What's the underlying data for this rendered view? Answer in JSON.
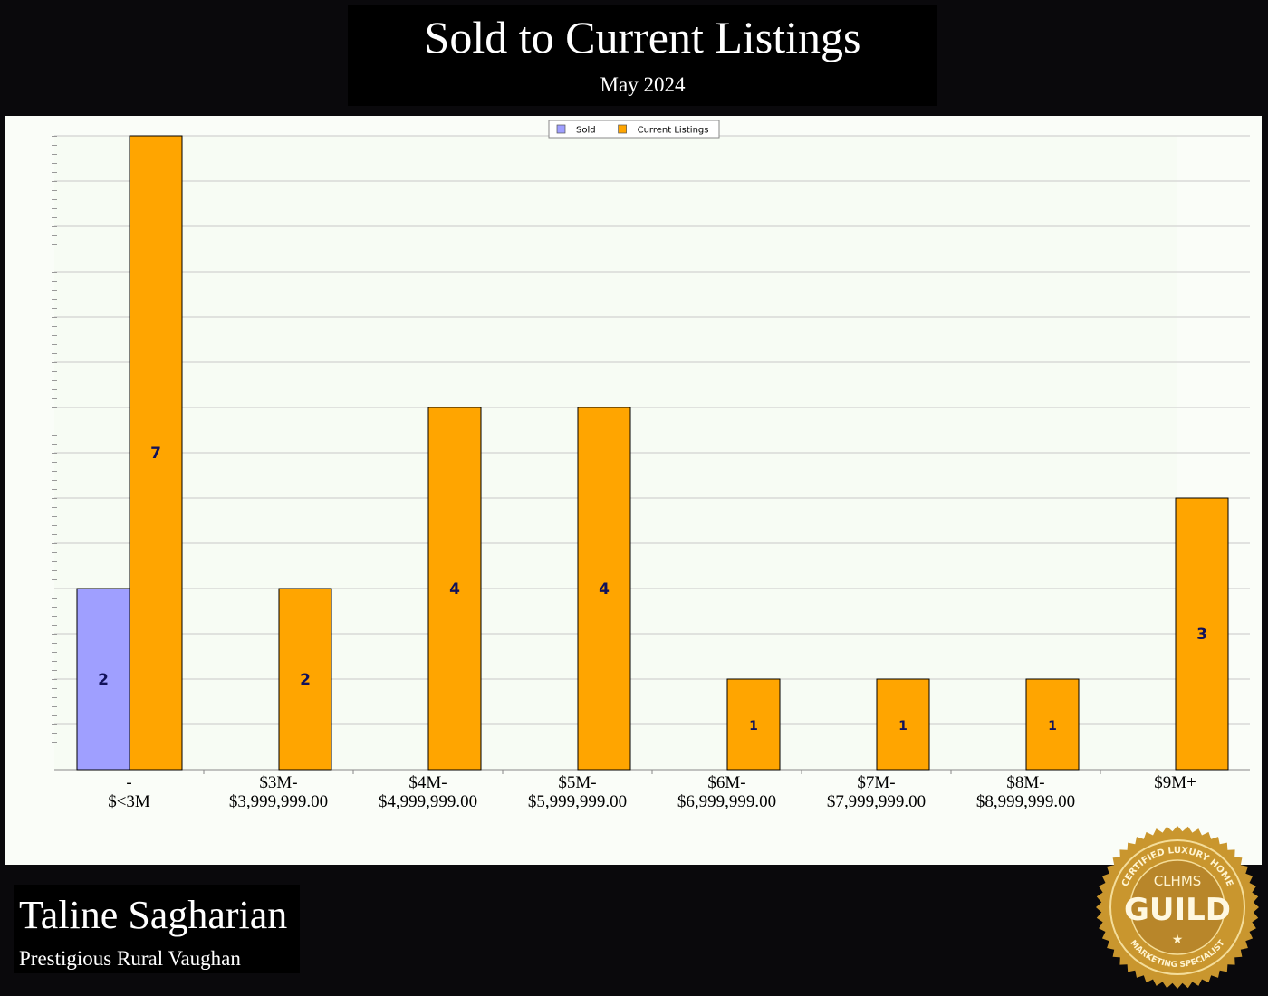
{
  "chart_data": {
    "type": "bar",
    "title": "Sold to Current Listings",
    "subtitle": "May 2024",
    "categories": [
      "-\n$<3M",
      "$3M-\n$3,999,999.00",
      "$4M-\n$4,999,999.00",
      "$5M-\n$5,999,999.00",
      "$6M-\n$6,999,999.00",
      "$7M-\n$7,999,999.00",
      "$8M-\n$8,999,999.00",
      "$9M+"
    ],
    "series": [
      {
        "name": "Sold",
        "color": "#9f9fff",
        "values": [
          2,
          null,
          null,
          null,
          null,
          null,
          null,
          null
        ]
      },
      {
        "name": "Current Listings",
        "color": "#ffa500",
        "values": [
          7,
          2,
          4,
          4,
          1,
          1,
          1,
          3
        ]
      }
    ],
    "ylim": [
      0,
      7
    ],
    "yticks": [
      0,
      0.5,
      1,
      1.5,
      2,
      2.5,
      3,
      3.5,
      4,
      4.5,
      5,
      5.5,
      6,
      6.5,
      7
    ],
    "ytick_labels": false,
    "grid": true,
    "legend": "top",
    "data_labels": true
  },
  "footer": {
    "name": "Taline Sagharian",
    "area": "Prestigious Rural Vaughan"
  },
  "badge": {
    "top": "CERTIFIED LUXURY HOME",
    "mid": "CLHMS",
    "main": "GUILD",
    "bottom": "MARKETING SPECIALIST"
  }
}
